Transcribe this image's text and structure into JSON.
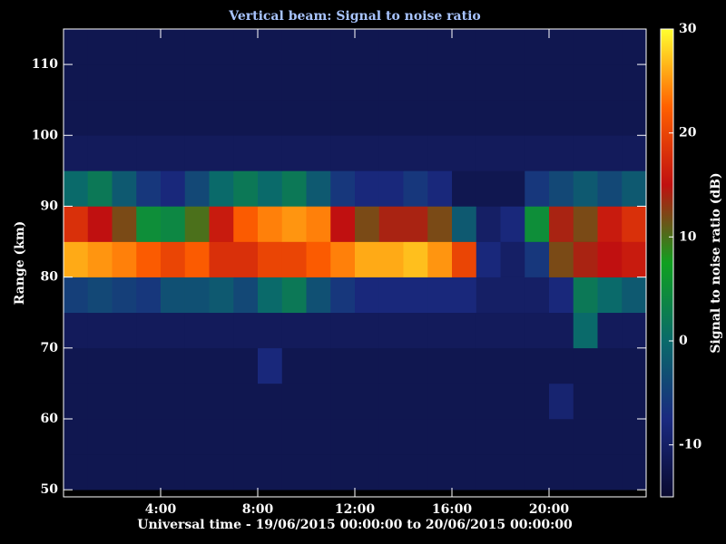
{
  "chart_data": {
    "type": "heatmap",
    "title": "Vertical beam: Signal to noise ratio",
    "x_label": "Universal time - 19/06/2015 00:00:00 to 20/06/2015 00:00:00",
    "y_label": "Range (km)",
    "colorbar_label": "Signal to noise ratio (dB)",
    "xlim": [
      0,
      24
    ],
    "xticks": [
      {
        "value": 4,
        "label": "4:00"
      },
      {
        "value": 8,
        "label": "8:00"
      },
      {
        "value": 12,
        "label": "12:00"
      },
      {
        "value": 16,
        "label": "16:00"
      },
      {
        "value": 20,
        "label": "20:00"
      }
    ],
    "ylim": [
      49,
      115
    ],
    "yticks": [
      50,
      60,
      70,
      80,
      90,
      100,
      110
    ],
    "zlim": [
      -15,
      30
    ],
    "zticks": [
      -10,
      0,
      10,
      20,
      30
    ],
    "colormap": [
      "#0a0a30",
      "#1a2a80",
      "#0a6a6a",
      "#10a020",
      "#c01010",
      "#ff6000",
      "#ffff30"
    ],
    "x": [
      0.5,
      1.5,
      2.5,
      3.5,
      4.5,
      5.5,
      6.5,
      7.5,
      8.5,
      9.5,
      10.5,
      11.5,
      12.5,
      13.5,
      14.5,
      15.5,
      16.5,
      17.5,
      18.5,
      19.5,
      20.5,
      21.5,
      22.5,
      23.5
    ],
    "y": [
      52.5,
      57.5,
      62.5,
      67.5,
      72.5,
      77.5,
      82.5,
      87.5,
      92.5,
      97.5,
      102.5,
      107.5,
      112.5
    ],
    "z": [
      [
        -12,
        -12,
        -12,
        -12,
        -12,
        -12,
        -12,
        -12,
        -12,
        -12,
        -12,
        -12,
        -12,
        -12,
        -12,
        -12,
        -12,
        -12,
        -12,
        -12,
        -12,
        -12,
        -12,
        -12
      ],
      [
        -12,
        -12,
        -12,
        -12,
        -12,
        -12,
        -12,
        -12,
        -12,
        -12,
        -12,
        -12,
        -12,
        -12,
        -12,
        -12,
        -12,
        -12,
        -12,
        -12,
        -12,
        -12,
        -12,
        -12
      ],
      [
        -12,
        -12,
        -12,
        -12,
        -12,
        -12,
        -12,
        -12,
        -12,
        -12,
        -12,
        -12,
        -12,
        -12,
        -12,
        -12,
        -12,
        -12,
        -12,
        -12,
        -9,
        -12,
        -12,
        -12
      ],
      [
        -12,
        -12,
        -12,
        -12,
        -12,
        -12,
        -12,
        -12,
        -8,
        -12,
        -12,
        -12,
        -12,
        -12,
        -12,
        -12,
        -12,
        -12,
        -12,
        -12,
        -12,
        -12,
        -12,
        -12
      ],
      [
        -11,
        -11,
        -11,
        -11,
        -11,
        -11,
        -11,
        -11,
        -11,
        -11,
        -11,
        -11,
        -11,
        -11,
        -11,
        -11,
        -11,
        -11,
        -11,
        -11,
        -11,
        0,
        -11,
        -11
      ],
      [
        -5,
        -4,
        -5,
        -6,
        -3,
        -3,
        -2,
        -4,
        0,
        2,
        -3,
        -6,
        -8,
        -8,
        -8,
        -8,
        -8,
        -10,
        -10,
        -10,
        -8,
        2,
        0,
        -2
      ],
      [
        26,
        25,
        24,
        22,
        20,
        22,
        18,
        18,
        20,
        20,
        22,
        24,
        26,
        26,
        27,
        25,
        20,
        -8,
        -10,
        -6,
        12,
        14,
        15,
        16
      ],
      [
        18,
        15,
        12,
        5,
        4,
        10,
        16,
        22,
        24,
        25,
        24,
        15,
        12,
        14,
        14,
        12,
        -2,
        -10,
        -8,
        5,
        14,
        12,
        16,
        18
      ],
      [
        0,
        2,
        -2,
        -6,
        -8,
        -4,
        0,
        2,
        0,
        2,
        -2,
        -6,
        -8,
        -8,
        -6,
        -8,
        -12,
        -12,
        -12,
        -6,
        -4,
        -2,
        -4,
        -2
      ],
      [
        -11,
        -11,
        -11,
        -11,
        -11,
        -11,
        -11,
        -11,
        -11,
        -11,
        -11,
        -11,
        -11,
        -11,
        -11,
        -11,
        -11,
        -11,
        -11,
        -11,
        -11,
        -11,
        -11,
        -11
      ],
      [
        -12,
        -12,
        -12,
        -12,
        -12,
        -12,
        -12,
        -12,
        -12,
        -12,
        -12,
        -12,
        -12,
        -12,
        -12,
        -12,
        -12,
        -12,
        -12,
        -12,
        -12,
        -12,
        -12,
        -12
      ],
      [
        -12,
        -12,
        -12,
        -12,
        -12,
        -12,
        -12,
        -12,
        -12,
        -12,
        -12,
        -12,
        -12,
        -12,
        -12,
        -12,
        -12,
        -12,
        -12,
        -12,
        -12,
        -12,
        -12,
        -12
      ],
      [
        -12,
        -12,
        -12,
        -12,
        -12,
        -12,
        -12,
        -12,
        -12,
        -12,
        -12,
        -12,
        -12,
        -12,
        -12,
        -12,
        -12,
        -12,
        -12,
        -12,
        -12,
        -12,
        -12,
        -12
      ]
    ]
  }
}
